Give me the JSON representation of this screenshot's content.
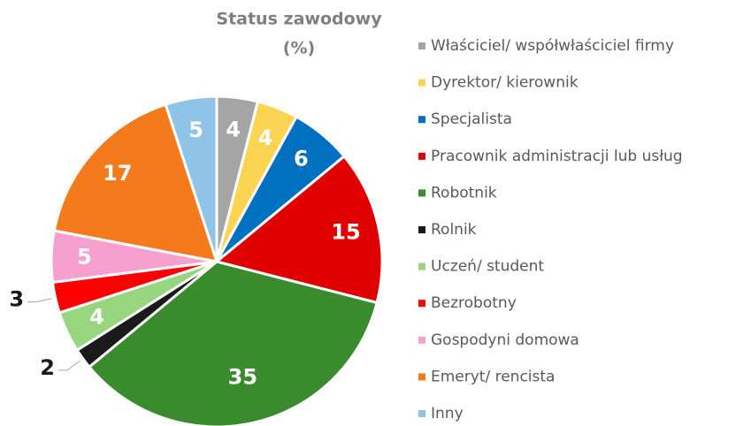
{
  "chart_data": {
    "type": "pie",
    "title_lines": [
      "Status zawodowy",
      "(%)"
    ],
    "categories": [
      "Właściciel/ współwłaściciel firmy",
      "Dyrektor/ kierownik",
      "Specjalista",
      "Pracownik administracji lub usług",
      "Robotnik",
      "Rolnik",
      "Uczeń/ student",
      "Bezrobotny",
      "Gospodyni domowa",
      "Emeryt/ rencista",
      "Inny"
    ],
    "values": [
      4,
      4,
      6,
      15,
      35,
      2,
      4,
      3,
      5,
      17,
      5
    ],
    "colors": [
      "#a5a5a5",
      "#fbd452",
      "#0070c0",
      "#e00000",
      "#3a8a2e",
      "#1a1a1a",
      "#97d67f",
      "#ff0000",
      "#f7a0cf",
      "#f47a1c",
      "#8fc3e8"
    ],
    "legend": "right"
  }
}
